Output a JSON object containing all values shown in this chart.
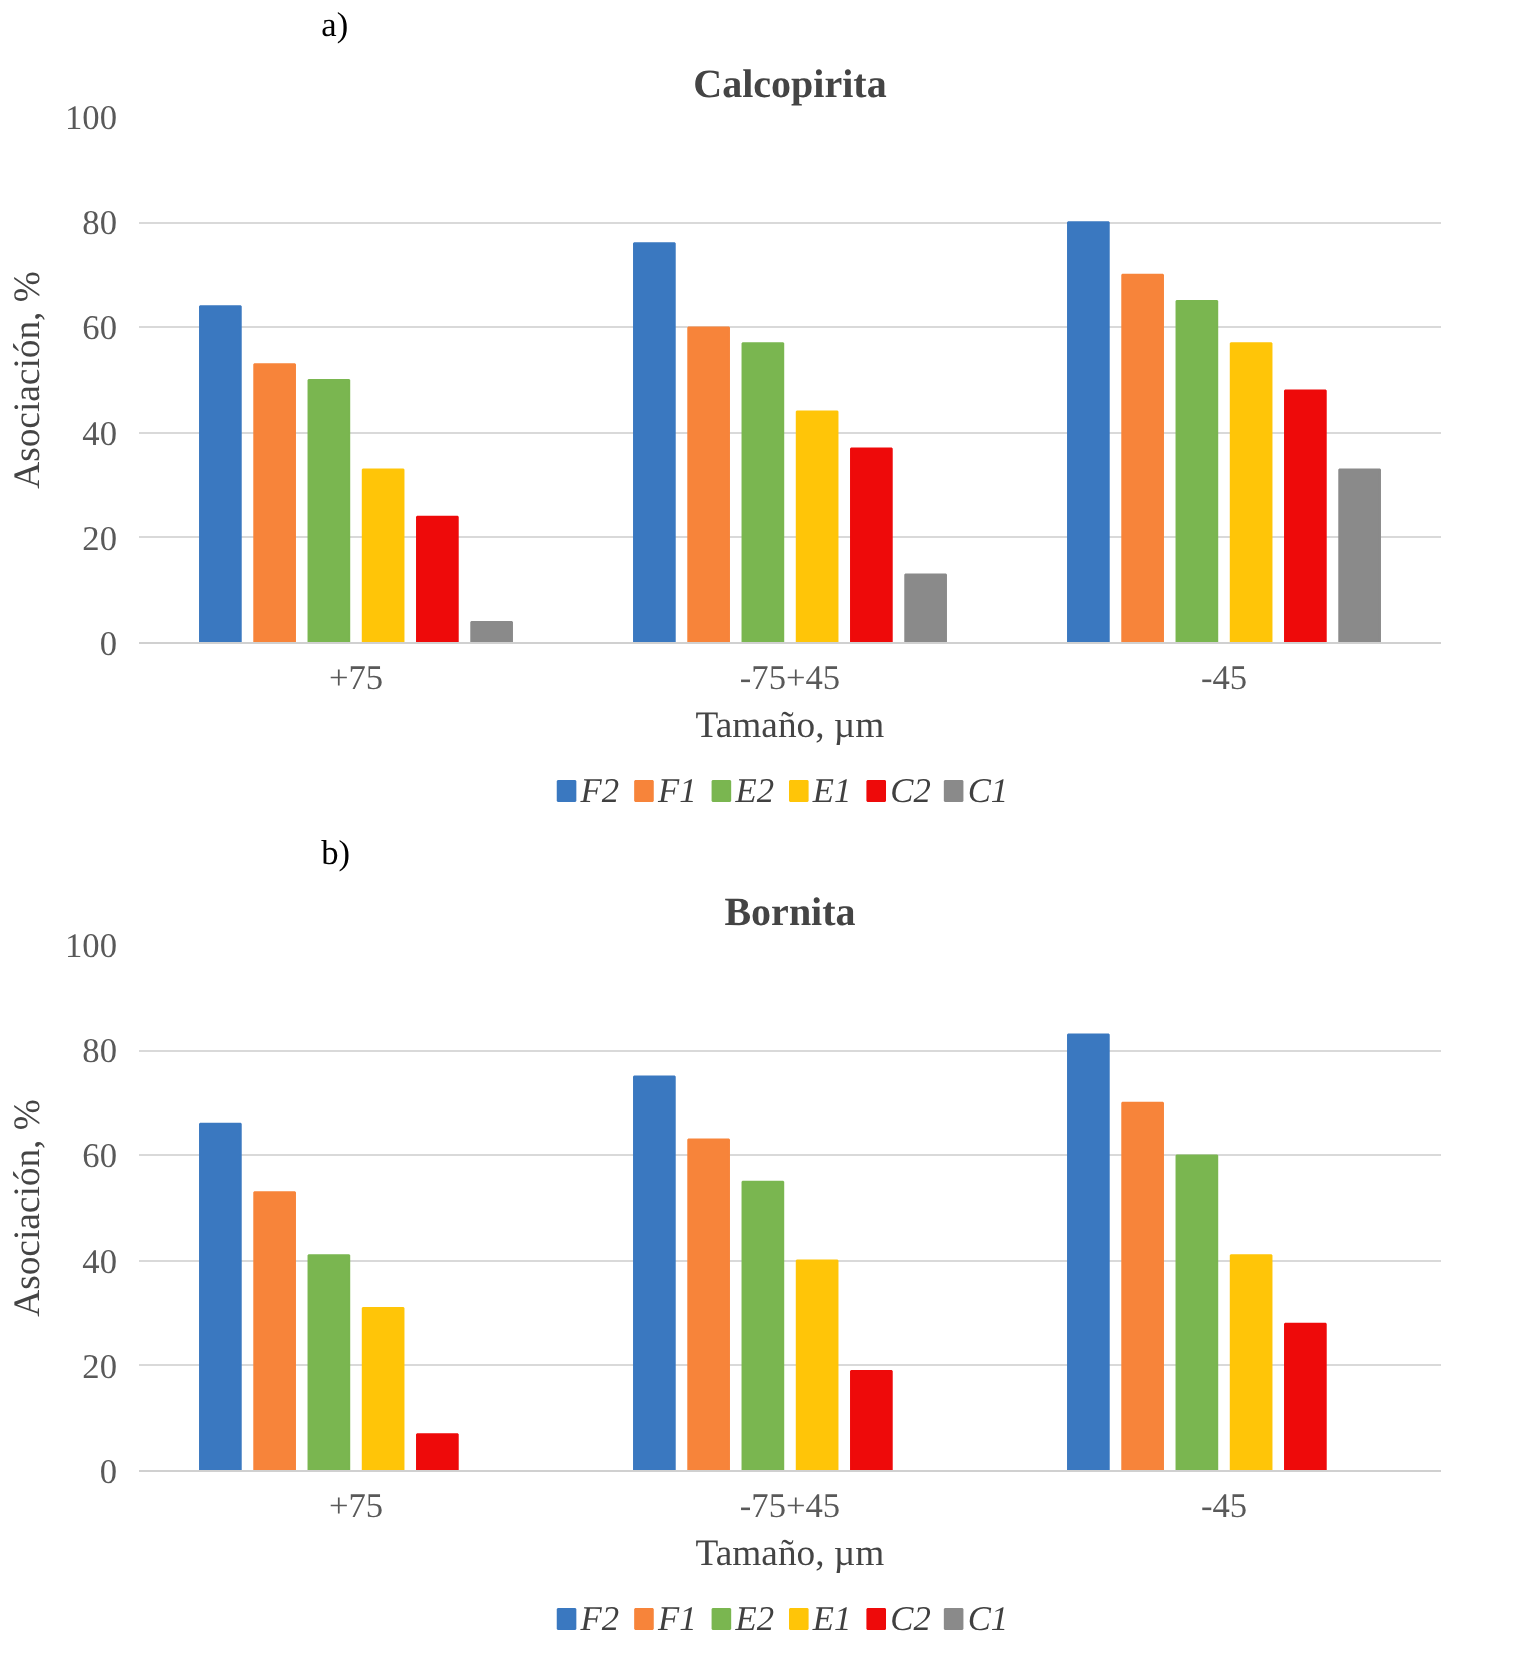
{
  "chart_data": [
    {
      "type": "bar",
      "title": "Calcopirita",
      "xlabel": "Tamaño, µm",
      "ylabel": "Asociación, %",
      "annotations": [
        "a)"
      ],
      "categories": [
        "+75",
        "-75+45",
        "-45"
      ],
      "ylim": [
        0,
        100
      ],
      "yticks": [
        0,
        20,
        40,
        60,
        80,
        100
      ],
      "grid": "y",
      "legend": "bottom",
      "series": [
        {
          "name": "F2",
          "color": "#3a78c0",
          "values": [
            64,
            76,
            80
          ]
        },
        {
          "name": "F1",
          "color": "#f7843a",
          "values": [
            53,
            60,
            70
          ]
        },
        {
          "name": "E2",
          "color": "#7ab650",
          "values": [
            50,
            57,
            65
          ]
        },
        {
          "name": "E1",
          "color": "#ffc508",
          "values": [
            33,
            44,
            57
          ]
        },
        {
          "name": "C2",
          "color": "#ee0a0a",
          "values": [
            24,
            37,
            48
          ]
        },
        {
          "name": "C1",
          "color": "#8a8a8a",
          "values": [
            4,
            13,
            33
          ]
        }
      ]
    },
    {
      "type": "bar",
      "title": "Bornita",
      "xlabel": "Tamaño, µm",
      "ylabel": "Asociación, %",
      "annotations": [
        "b)"
      ],
      "categories": [
        "+75",
        "-75+45",
        "-45"
      ],
      "ylim": [
        0,
        100
      ],
      "yticks": [
        0,
        20,
        40,
        60,
        80,
        100
      ],
      "grid": "y",
      "legend": "bottom",
      "series": [
        {
          "name": "F2",
          "color": "#3a78c0",
          "values": [
            66,
            75,
            83
          ]
        },
        {
          "name": "F1",
          "color": "#f7843a",
          "values": [
            53,
            63,
            70
          ]
        },
        {
          "name": "E2",
          "color": "#7ab650",
          "values": [
            41,
            55,
            60
          ]
        },
        {
          "name": "E1",
          "color": "#ffc508",
          "values": [
            31,
            40,
            41
          ]
        },
        {
          "name": "C2",
          "color": "#ee0a0a",
          "values": [
            7,
            19,
            28
          ]
        },
        {
          "name": "C1",
          "color": "#8a8a8a",
          "values": [
            null,
            null,
            null
          ]
        }
      ]
    }
  ]
}
